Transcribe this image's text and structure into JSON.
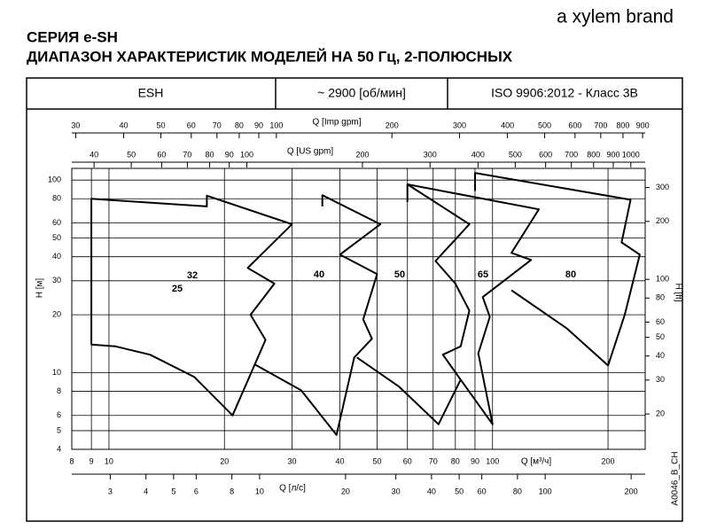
{
  "header": {
    "brand": "a xylem brand",
    "title": "СЕРИЯ e-SH",
    "subtitle": "ДИАПАЗОН ХАРАКТЕРИСТИК МОДЕЛЕЙ НА 50 Гц, 2-ПОЛЮСНЫХ",
    "info": [
      "ESH",
      "~ 2900 [об/мин]",
      "ISO 9906:2012 - Класс 3B"
    ],
    "code": "A0046_B_CH"
  },
  "chart_data": {
    "type": "line",
    "log_scale": true,
    "grid": true,
    "xlabel": "Q [м³/ч]",
    "ylabel": "H [м]",
    "y2label": "H [ft]",
    "xlim": [
      8,
      250
    ],
    "ylim": [
      4,
      115
    ],
    "y2lim": [
      13.1,
      377
    ],
    "xticks": [
      8,
      9,
      10,
      20,
      30,
      40,
      50,
      60,
      70,
      80,
      90,
      100,
      200
    ],
    "yticks": [
      4,
      5,
      6,
      8,
      10,
      20,
      30,
      40,
      50,
      60,
      80,
      100
    ],
    "y2ticks": [
      20,
      30,
      40,
      50,
      60,
      80,
      100,
      200,
      300
    ],
    "secondary_axes": [
      {
        "label": "Q [л/с]",
        "position": "bottom",
        "lim": [
          2.2,
          224
        ],
        "ticks": [
          3,
          4,
          5,
          6,
          8,
          10,
          20,
          30,
          40,
          50,
          60,
          80,
          100,
          200
        ]
      },
      {
        "label": "Q [US gpm]",
        "position": "top",
        "lim": [
          35,
          1090
        ],
        "ticks": [
          40,
          50,
          60,
          70,
          80,
          90,
          100,
          200,
          300,
          400,
          500,
          600,
          700,
          800,
          900,
          1000
        ]
      },
      {
        "label": "Q [Imp gpm]",
        "position": "top",
        "lim": [
          29.3,
          914
        ],
        "ticks": [
          30,
          40,
          50,
          60,
          70,
          80,
          90,
          100,
          200,
          300,
          400,
          500,
          600,
          700,
          800,
          900
        ]
      }
    ],
    "size_labels": [
      "25",
      "32",
      "40",
      "50",
      "65",
      "80"
    ],
    "series": [
      {
        "color": "#000000",
        "x": [
          9,
          9,
          18,
          18,
          30,
          23,
          27,
          23.4,
          25.6,
          21,
          16.7,
          12.8,
          10.4,
          9
        ],
        "values": [
          14,
          80,
          73,
          83,
          59,
          35,
          29,
          20,
          14.8,
          6,
          9.5,
          12.4,
          13.7,
          14
        ]
      },
      {
        "color": "#000000",
        "x": [
          36,
          36,
          51,
          40,
          50,
          46,
          48.5,
          43.6,
          39.2,
          31.7,
          23.9
        ],
        "values": [
          73,
          83.5,
          59,
          41,
          32.5,
          18.9,
          15,
          12,
          4.75,
          8.1,
          11.1
        ]
      },
      {
        "color": "#000000",
        "x": [
          60,
          60,
          87,
          71,
          80,
          87,
          82.6,
          74.2,
          82.6,
          72.3,
          56.9,
          44.3
        ],
        "values": [
          77,
          95,
          59,
          38,
          29,
          21,
          13.7,
          12.4,
          9.2,
          5.4,
          8.5,
          12
        ]
      },
      {
        "color": "#000000",
        "x": [
          60,
          132,
          112,
          126,
          94.3,
          98.4,
          91.8,
          100,
          82.6
        ],
        "values": [
          95,
          70.5,
          41.9,
          38.5,
          24.7,
          19.5,
          12.6,
          5.4,
          9.2
        ]
      },
      {
        "color": "#000000",
        "x": [
          90,
          90,
          229,
          217,
          242,
          221,
          200,
          156,
          112
        ],
        "values": [
          88,
          109,
          79,
          47.5,
          41,
          19.9,
          10.9,
          17,
          26.8
        ]
      }
    ]
  }
}
